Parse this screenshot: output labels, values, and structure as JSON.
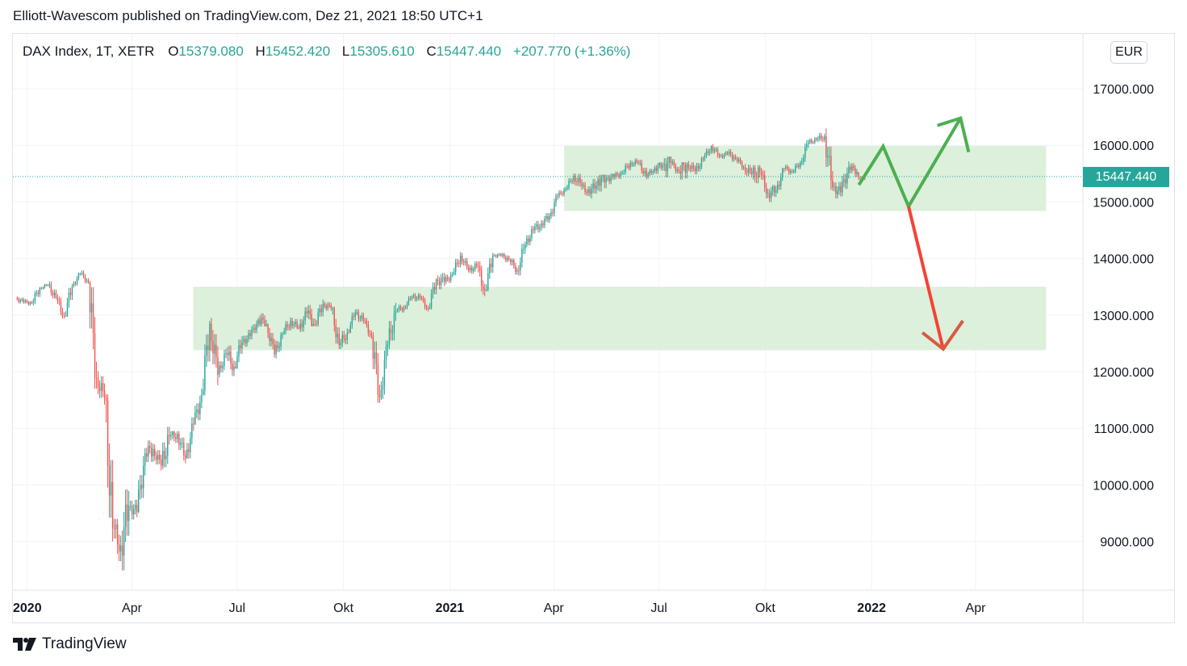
{
  "header": {
    "publisher": "Elliott-Wavescom published on TradingView.com, Dez 21, 2021 18:50 UTC+1"
  },
  "legend": {
    "symbol": "DAX Index, 1T, XETR",
    "open_label": "O",
    "open": "15379.080",
    "high_label": "H",
    "high": "15452.420",
    "low_label": "L",
    "low": "15305.610",
    "close_label": "C",
    "close": "15447.440",
    "change": "+207.770 (+1.36%)"
  },
  "currency": "EUR",
  "last_price_tag": "15447.440",
  "brand": {
    "name": "TradingView"
  },
  "colors": {
    "up": "#26a69a",
    "down": "#ef5350",
    "zone": "#d8eed8",
    "arrow_green": "#4caf50",
    "arrow_red": "#f44336"
  },
  "chart_data": {
    "type": "candlestick",
    "y_ticks": [
      "17000.000",
      "16000.000",
      "15000.000",
      "14000.000",
      "13000.000",
      "12000.000",
      "11000.000",
      "10000.000",
      "9000.000"
    ],
    "y_tick_values": [
      17000,
      16000,
      15000,
      14000,
      13000,
      12000,
      11000,
      10000,
      9000
    ],
    "ylim": [
      8200,
      17600
    ],
    "x_ticks": [
      {
        "label": "2020",
        "date": "2020-01-01",
        "bold": true
      },
      {
        "label": "Apr",
        "date": "2020-04-01",
        "bold": false
      },
      {
        "label": "Jul",
        "date": "2020-07-01",
        "bold": false
      },
      {
        "label": "Okt",
        "date": "2020-10-01",
        "bold": false
      },
      {
        "label": "2021",
        "date": "2021-01-01",
        "bold": true
      },
      {
        "label": "Apr",
        "date": "2021-04-01",
        "bold": false
      },
      {
        "label": "Jul",
        "date": "2021-07-01",
        "bold": false
      },
      {
        "label": "Okt",
        "date": "2021-10-01",
        "bold": false
      },
      {
        "label": "2022",
        "date": "2022-01-01",
        "bold": true
      },
      {
        "label": "Apr",
        "date": "2022-04-01",
        "bold": false
      }
    ],
    "xlim": [
      "2019-12-20",
      "2022-06-01"
    ],
    "last_price": 15447.44,
    "ohlc_weekly": [
      [
        "2019-12-23",
        13300,
        13380,
        13180,
        13230
      ],
      [
        "2019-12-30",
        13230,
        13290,
        13120,
        13220
      ],
      [
        "2020-01-06",
        13220,
        13500,
        13170,
        13480
      ],
      [
        "2020-01-13",
        13480,
        13560,
        13420,
        13530
      ],
      [
        "2020-01-20",
        13530,
        13640,
        13280,
        13300
      ],
      [
        "2020-01-27",
        13300,
        13380,
        12940,
        12980
      ],
      [
        "2020-02-03",
        12980,
        13550,
        12970,
        13510
      ],
      [
        "2020-02-10",
        13510,
        13750,
        13490,
        13740
      ],
      [
        "2020-02-17",
        13740,
        13800,
        13550,
        13580
      ],
      [
        "2020-02-24",
        13580,
        13600,
        11700,
        11890
      ],
      [
        "2020-03-02",
        11890,
        12200,
        11400,
        11540
      ],
      [
        "2020-03-09",
        11540,
        11600,
        9000,
        9230
      ],
      [
        "2020-03-16",
        9230,
        9400,
        8250,
        8930
      ],
      [
        "2020-03-23",
        8930,
        10200,
        8440,
        9630
      ],
      [
        "2020-03-30",
        9630,
        9900,
        9300,
        9520
      ],
      [
        "2020-04-06",
        9520,
        10650,
        9500,
        10560
      ],
      [
        "2020-04-13",
        10560,
        10900,
        10250,
        10630
      ],
      [
        "2020-04-20",
        10630,
        10750,
        10200,
        10340
      ],
      [
        "2020-04-27",
        10340,
        11250,
        10280,
        10860
      ],
      [
        "2020-05-04",
        10860,
        10950,
        10450,
        10900
      ],
      [
        "2020-05-11",
        10900,
        10950,
        10350,
        10470
      ],
      [
        "2020-05-18",
        10470,
        11200,
        10460,
        11070
      ],
      [
        "2020-05-25",
        11070,
        11800,
        11060,
        11590
      ],
      [
        "2020-06-01",
        11590,
        12900,
        11580,
        12850
      ],
      [
        "2020-06-08",
        12850,
        12950,
        11700,
        11950
      ],
      [
        "2020-06-15",
        11950,
        12400,
        11900,
        12330
      ],
      [
        "2020-06-22",
        12330,
        12600,
        11900,
        12090
      ],
      [
        "2020-06-29",
        12090,
        12700,
        12050,
        12530
      ],
      [
        "2020-07-06",
        12530,
        12800,
        12400,
        12630
      ],
      [
        "2020-07-13",
        12630,
        12950,
        12550,
        12920
      ],
      [
        "2020-07-20",
        12920,
        13300,
        12800,
        12840
      ],
      [
        "2020-07-27",
        12840,
        12850,
        12250,
        12310
      ],
      [
        "2020-08-03",
        12310,
        12700,
        12200,
        12670
      ],
      [
        "2020-08-10",
        12670,
        13050,
        12650,
        12900
      ],
      [
        "2020-08-17",
        12900,
        13100,
        12750,
        12760
      ],
      [
        "2020-08-24",
        12760,
        13200,
        12700,
        13030
      ],
      [
        "2020-08-31",
        13030,
        13450,
        12800,
        12840
      ],
      [
        "2020-09-07",
        12840,
        13300,
        12800,
        13200
      ],
      [
        "2020-09-14",
        13200,
        13300,
        13000,
        13120
      ],
      [
        "2020-09-21",
        13120,
        13150,
        12400,
        12470
      ],
      [
        "2020-09-28",
        12470,
        12900,
        12400,
        12690
      ],
      [
        "2020-10-05",
        12690,
        13100,
        12680,
        13050
      ],
      [
        "2020-10-12",
        13050,
        13200,
        12850,
        12900
      ],
      [
        "2020-10-19",
        12900,
        12950,
        12550,
        12640
      ],
      [
        "2020-10-26",
        12640,
        12700,
        11450,
        11550
      ],
      [
        "2020-11-02",
        11550,
        12550,
        11500,
        12480
      ],
      [
        "2020-11-09",
        12480,
        13300,
        12400,
        13080
      ],
      [
        "2020-11-16",
        13080,
        13200,
        12950,
        13140
      ],
      [
        "2020-11-23",
        13140,
        13350,
        13100,
        13330
      ],
      [
        "2020-11-30",
        13330,
        13400,
        13150,
        13300
      ],
      [
        "2020-12-07",
        13300,
        13350,
        13050,
        13110
      ],
      [
        "2020-12-14",
        13110,
        13650,
        13100,
        13630
      ],
      [
        "2020-12-21",
        13630,
        13800,
        13300,
        13590
      ],
      [
        "2020-12-28",
        13590,
        13800,
        13500,
        13720
      ],
      [
        "2021-01-04",
        13720,
        14130,
        13700,
        14050
      ],
      [
        "2021-01-11",
        14050,
        14100,
        13750,
        13790
      ],
      [
        "2021-01-18",
        13790,
        14000,
        13700,
        13870
      ],
      [
        "2021-01-25",
        13870,
        13950,
        13300,
        13430
      ],
      [
        "2021-02-01",
        13430,
        14100,
        13420,
        14060
      ],
      [
        "2021-02-08",
        14060,
        14100,
        13950,
        14050
      ],
      [
        "2021-02-15",
        14050,
        14100,
        13850,
        13990
      ],
      [
        "2021-02-22",
        13990,
        14000,
        13650,
        13790
      ],
      [
        "2021-03-01",
        13790,
        14300,
        13700,
        14250
      ],
      [
        "2021-03-08",
        14250,
        14600,
        14200,
        14500
      ],
      [
        "2021-03-15",
        14500,
        14800,
        14400,
        14620
      ],
      [
        "2021-03-22",
        14620,
        14850,
        14500,
        14750
      ],
      [
        "2021-03-29",
        14750,
        15150,
        14700,
        15100
      ],
      [
        "2021-04-05",
        15100,
        15300,
        15050,
        15230
      ],
      [
        "2021-04-12",
        15230,
        15500,
        15200,
        15460
      ],
      [
        "2021-04-19",
        15460,
        15500,
        15050,
        15280
      ],
      [
        "2021-04-26",
        15280,
        15350,
        15000,
        15140
      ],
      [
        "2021-05-03",
        15140,
        15450,
        14900,
        15400
      ],
      [
        "2021-05-10",
        15400,
        15480,
        14800,
        15420
      ],
      [
        "2021-05-17",
        15420,
        15500,
        15150,
        15440
      ],
      [
        "2021-05-24",
        15440,
        15600,
        15350,
        15520
      ],
      [
        "2021-05-31",
        15520,
        15750,
        15450,
        15690
      ],
      [
        "2021-06-07",
        15690,
        15800,
        15550,
        15690
      ],
      [
        "2021-06-14",
        15690,
        15750,
        15400,
        15450
      ],
      [
        "2021-06-21",
        15450,
        15650,
        15400,
        15600
      ],
      [
        "2021-06-28",
        15600,
        15700,
        15350,
        15650
      ],
      [
        "2021-07-05",
        15650,
        15800,
        15100,
        15690
      ],
      [
        "2021-07-12",
        15690,
        15800,
        15500,
        15540
      ],
      [
        "2021-07-19",
        15540,
        15700,
        15000,
        15670
      ],
      [
        "2021-07-26",
        15670,
        15800,
        15450,
        15540
      ],
      [
        "2021-08-02",
        15540,
        15800,
        15450,
        15760
      ],
      [
        "2021-08-09",
        15760,
        16000,
        15700,
        15980
      ],
      [
        "2021-08-16",
        15980,
        16030,
        15750,
        15810
      ],
      [
        "2021-08-23",
        15810,
        15900,
        15700,
        15850
      ],
      [
        "2021-08-30",
        15850,
        16000,
        15700,
        15780
      ],
      [
        "2021-09-06",
        15780,
        15800,
        15550,
        15610
      ],
      [
        "2021-09-13",
        15610,
        15800,
        15400,
        15490
      ],
      [
        "2021-09-20",
        15490,
        15650,
        15000,
        15530
      ],
      [
        "2021-09-27",
        15530,
        15600,
        15050,
        15150
      ],
      [
        "2021-10-04",
        15150,
        15300,
        14800,
        15210
      ],
      [
        "2021-10-11",
        15210,
        15600,
        15150,
        15590
      ],
      [
        "2021-10-18",
        15590,
        15700,
        15450,
        15540
      ],
      [
        "2021-10-25",
        15540,
        15750,
        15500,
        15690
      ],
      [
        "2021-11-01",
        15690,
        16100,
        15650,
        16050
      ],
      [
        "2021-11-08",
        16050,
        16150,
        15950,
        16100
      ],
      [
        "2021-11-15",
        16100,
        16300,
        16000,
        16160
      ],
      [
        "2021-11-22",
        16160,
        16300,
        15200,
        15260
      ],
      [
        "2021-11-29",
        15260,
        15500,
        15000,
        15170
      ],
      [
        "2021-12-06",
        15170,
        15750,
        15100,
        15620
      ],
      [
        "2021-12-13",
        15620,
        15700,
        15350,
        15530
      ],
      [
        "2021-12-20",
        15530,
        15450,
        15050,
        15447
      ]
    ],
    "zones": [
      {
        "from": "2020-05-24",
        "to": "2022-06-01",
        "y_low": 12380,
        "y_high": 13500
      },
      {
        "from": "2021-04-10",
        "to": "2022-06-01",
        "y_low": 14840,
        "y_high": 15990
      }
    ],
    "projections": [
      {
        "color": "#4caf50",
        "points": [
          [
            "2021-12-21",
            15300
          ],
          [
            "2022-01-11",
            15980
          ],
          [
            "2022-02-02",
            14920
          ],
          [
            "2022-03-19",
            16480
          ]
        ],
        "arrowhead": [
          [
            "2022-02-27",
            16350
          ],
          [
            "2022-03-19",
            16480
          ],
          [
            "2022-03-26",
            15880
          ]
        ]
      },
      {
        "color": "#f44336",
        "points": [
          [
            "2022-02-02",
            14920
          ],
          [
            "2022-03-04",
            12400
          ]
        ],
        "arrowhead": [
          [
            "2022-02-14",
            12690
          ],
          [
            "2022-03-04",
            12400
          ],
          [
            "2022-03-21",
            12900
          ]
        ]
      }
    ]
  }
}
